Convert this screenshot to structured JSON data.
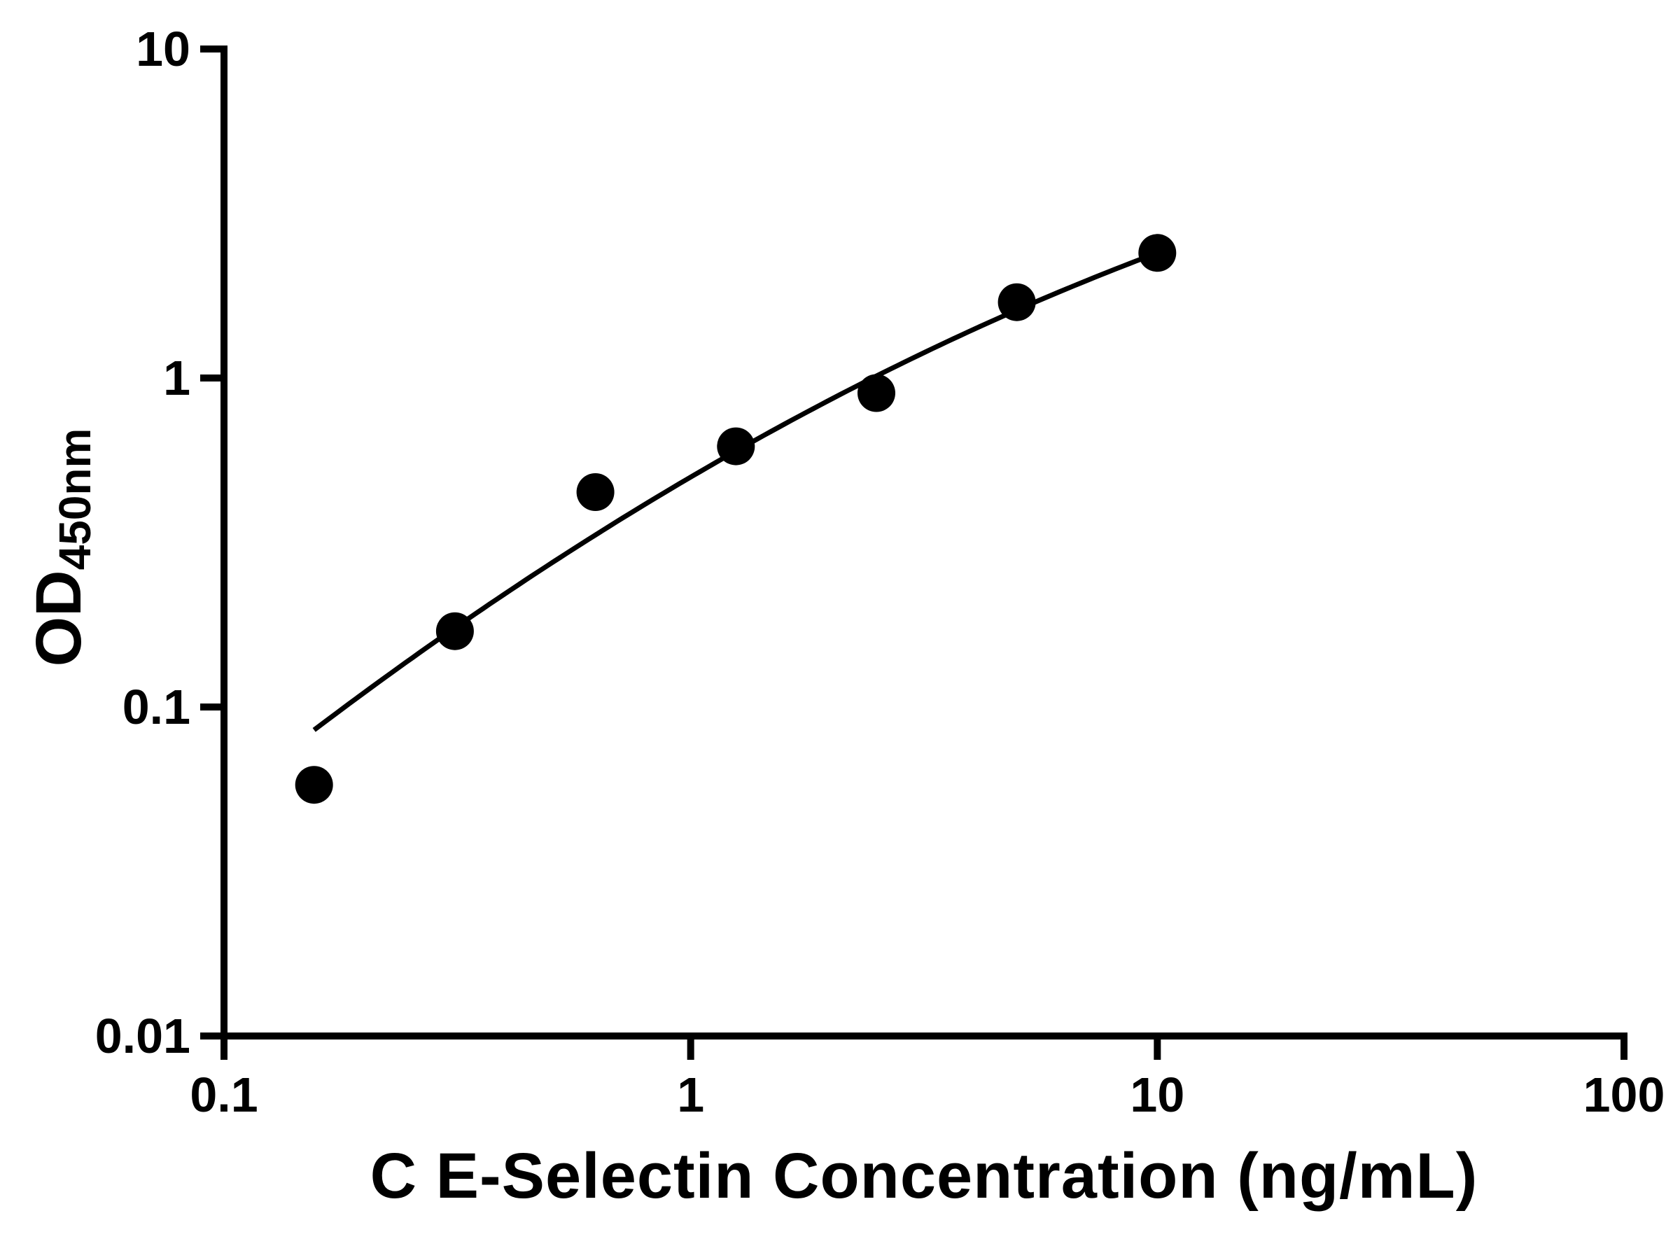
{
  "chart_data": {
    "type": "scatter",
    "title": "",
    "xlabel": "C E-Selectin Concentration (ng/mL)",
    "ylabel": "OD",
    "ylabel_subscript": "450nm",
    "x_scale": "log",
    "y_scale": "log",
    "xlim": [
      0.1,
      100
    ],
    "ylim": [
      0.01,
      10
    ],
    "x_ticks": [
      0.1,
      1,
      10,
      100
    ],
    "x_tick_labels": [
      "0.1",
      "1",
      "10",
      "100"
    ],
    "y_ticks": [
      0.01,
      0.1,
      1,
      10
    ],
    "y_tick_labels": [
      "0.01",
      "0.1",
      "1",
      "10"
    ],
    "grid": false,
    "legend": "none",
    "axis_color": "#000000",
    "background_color": "#ffffff",
    "series": [
      {
        "name": "standard-curve-points",
        "marker": "circle",
        "color": "#000000",
        "points": [
          {
            "x": 0.156,
            "y": 0.058
          },
          {
            "x": 0.3125,
            "y": 0.17
          },
          {
            "x": 0.625,
            "y": 0.45
          },
          {
            "x": 1.25,
            "y": 0.62
          },
          {
            "x": 2.5,
            "y": 0.9
          },
          {
            "x": 5,
            "y": 1.7
          },
          {
            "x": 10,
            "y": 2.4
          }
        ]
      }
    ],
    "trendline": {
      "name": "fitted-standard-curve",
      "type": "quadratic-loglog",
      "description": "log10(y) = a + b*u + c*u^2, u = log10(x)",
      "a": -0.3012,
      "b": 0.8314,
      "c": -0.1502,
      "x_start": 0.156,
      "x_end": 10.0,
      "color": "#000000"
    }
  }
}
